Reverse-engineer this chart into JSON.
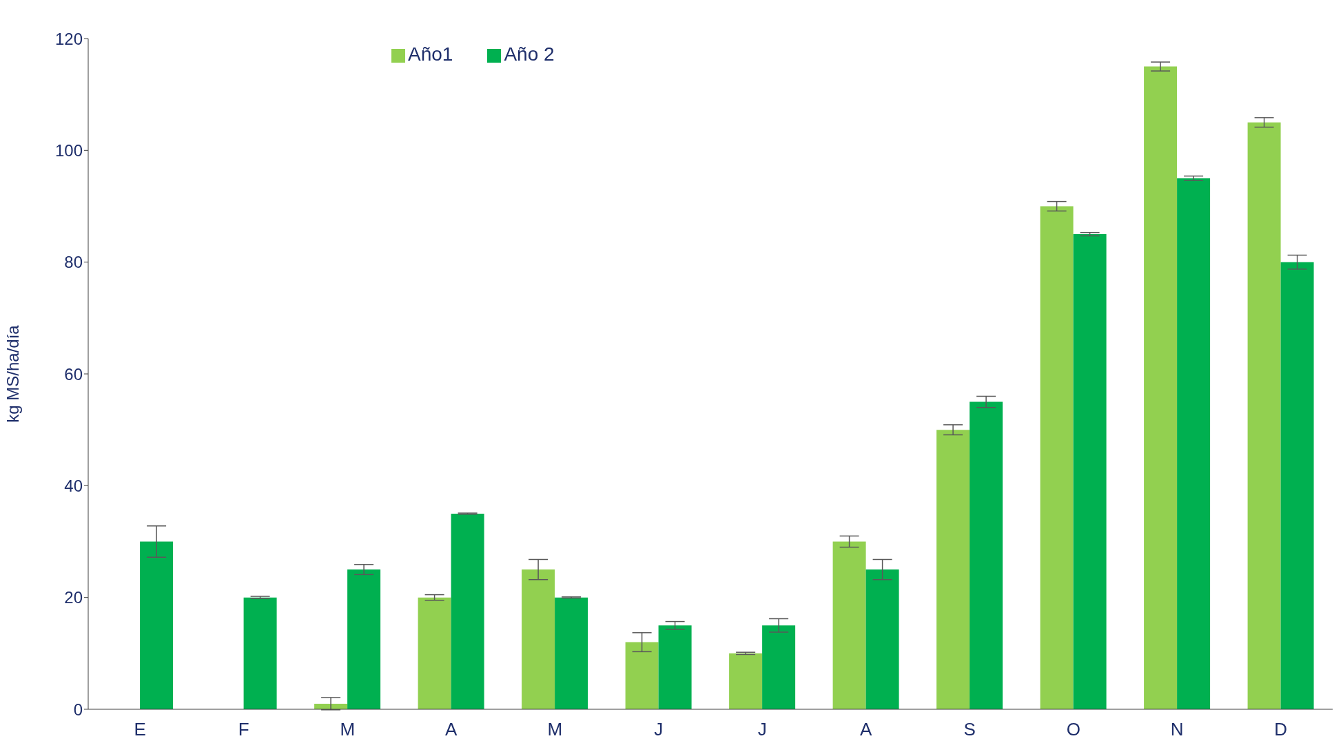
{
  "chart_data": {
    "type": "bar",
    "ylabel": "kg MS/ha/día",
    "categories": [
      "E",
      "F",
      "M",
      "A",
      "M",
      "J",
      "J",
      "A",
      "S",
      "O",
      "N",
      "D"
    ],
    "series": [
      {
        "name": "Año1",
        "color": "#92d050",
        "values": [
          null,
          null,
          1,
          20,
          25,
          12,
          10,
          30,
          50,
          90,
          115,
          105
        ],
        "errors": [
          null,
          null,
          1.1,
          0.5,
          1.8,
          1.7,
          0.2,
          1,
          0.9,
          0.85,
          0.8,
          0.85
        ]
      },
      {
        "name": "Año 2",
        "color": "#00b050",
        "values": [
          30,
          20,
          25,
          35,
          20,
          15,
          15,
          25,
          55,
          85,
          95,
          80
        ],
        "errors": [
          2.8,
          0.2,
          0.9,
          0.1,
          0.1,
          0.7,
          1.2,
          1.8,
          1,
          0.3,
          0.4,
          1.25
        ]
      }
    ],
    "ylim": [
      0,
      120
    ],
    "yticks": [
      0,
      20,
      40,
      60,
      80,
      100,
      120
    ],
    "grid": false,
    "legend": "top left"
  }
}
